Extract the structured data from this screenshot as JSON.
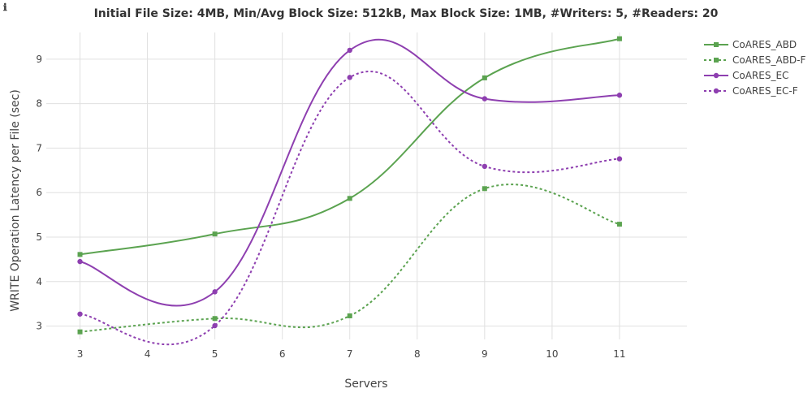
{
  "info_icon": "ℹ",
  "chart_data": {
    "type": "line",
    "title": "Initial File Size: 4MB, Min/Avg Block Size: 512kB, Max Block Size: 1MB, #Writers: 5, #Readers: 20",
    "xlabel": "Servers",
    "ylabel": "WRITE Operation Latency per File (sec)",
    "x": [
      3,
      5,
      7,
      9,
      11
    ],
    "xticks": [
      "3",
      "4",
      "5",
      "6",
      "7",
      "8",
      "9",
      "10",
      "11"
    ],
    "yticks": [
      "3",
      "4",
      "5",
      "6",
      "7",
      "8",
      "9"
    ],
    "xlim": [
      2.5,
      12.0
    ],
    "ylim": [
      2.7,
      9.6
    ],
    "grid": true,
    "legend_position": "top-right",
    "series": [
      {
        "name": "CoARES_ABD",
        "values": [
          4.61,
          5.07,
          5.87,
          8.58,
          9.46
        ],
        "color": "#5ba350",
        "marker": "square",
        "dash": "solid"
      },
      {
        "name": "CoARES_ABD-F",
        "values": [
          2.87,
          3.17,
          3.23,
          6.09,
          5.29
        ],
        "color": "#5ba350",
        "marker": "square",
        "dash": "dot"
      },
      {
        "name": "CoARES_EC",
        "values": [
          4.45,
          3.77,
          9.2,
          8.11,
          8.19
        ],
        "color": "#8e3fb0",
        "marker": "circle",
        "dash": "solid"
      },
      {
        "name": "CoARES_EC-F",
        "values": [
          3.27,
          3.01,
          8.59,
          6.59,
          6.76
        ],
        "color": "#8e3fb0",
        "marker": "circle",
        "dash": "dot"
      }
    ]
  }
}
